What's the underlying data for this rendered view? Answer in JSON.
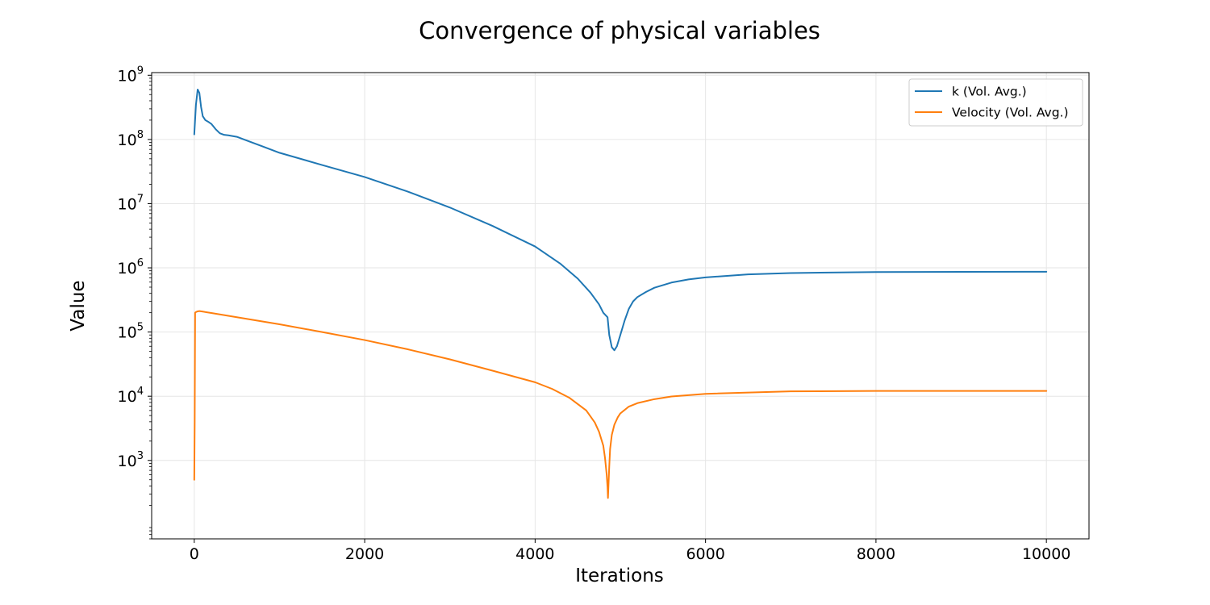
{
  "chart_data": {
    "type": "line",
    "title": "Convergence of physical variables",
    "xlabel": "Iterations",
    "ylabel": "Value",
    "yscale": "log",
    "xlim": [
      -500,
      10500
    ],
    "ylim": [
      60,
      1100000000
    ],
    "xticks": [
      0,
      2000,
      4000,
      6000,
      8000,
      10000
    ],
    "yticks": [
      {
        "value": 1000,
        "base": "10",
        "exp": "3"
      },
      {
        "value": 10000,
        "base": "10",
        "exp": "4"
      },
      {
        "value": 100000,
        "base": "10",
        "exp": "5"
      },
      {
        "value": 1000000,
        "base": "10",
        "exp": "6"
      },
      {
        "value": 10000000,
        "base": "10",
        "exp": "7"
      },
      {
        "value": 100000000,
        "base": "10",
        "exp": "8"
      },
      {
        "value": 1000000000,
        "base": "10",
        "exp": "9"
      }
    ],
    "grid": true,
    "legend_position": "top-right",
    "series": [
      {
        "name": "k (Vol. Avg.)",
        "color": "#1f77b4",
        "x": [
          0,
          20,
          40,
          60,
          80,
          100,
          130,
          160,
          200,
          250,
          300,
          350,
          400,
          500,
          600,
          800,
          1000,
          1500,
          2000,
          2500,
          3000,
          3500,
          4000,
          4300,
          4500,
          4650,
          4750,
          4800,
          4850,
          4870,
          4900,
          4930,
          4960,
          5000,
          5050,
          5100,
          5150,
          5200,
          5300,
          5400,
          5600,
          5800,
          6000,
          6500,
          7000,
          8000,
          9000,
          10000
        ],
        "y": [
          120000000,
          350000000,
          600000000,
          530000000,
          320000000,
          230000000,
          200000000,
          190000000,
          175000000,
          145000000,
          125000000,
          118000000,
          116000000,
          110000000,
          98000000,
          78000000,
          62000000,
          40000000,
          26000000,
          15500000,
          8700000,
          4500000,
          2150000,
          1150000,
          680000,
          410000,
          270000,
          200000,
          170000,
          90000,
          58000,
          52000,
          60000,
          90000,
          150000,
          230000,
          300000,
          350000,
          420000,
          490000,
          590000,
          660000,
          710000,
          790000,
          830000,
          860000,
          865000,
          870000
        ]
      },
      {
        "name": "Velocity (Vol. Avg.)",
        "color": "#ff7f0e",
        "x": [
          0,
          5,
          10,
          20,
          40,
          60,
          100,
          200,
          500,
          1000,
          1500,
          2000,
          2500,
          3000,
          3500,
          4000,
          4200,
          4400,
          4600,
          4700,
          4750,
          4800,
          4820,
          4840,
          4850,
          4855,
          4860,
          4870,
          4880,
          4900,
          4930,
          4970,
          5000,
          5100,
          5200,
          5400,
          5600,
          6000,
          7000,
          8000,
          9000,
          10000
        ],
        "y": [
          500,
          4000,
          200000,
          205000,
          210000,
          212000,
          208000,
          198000,
          170000,
          132000,
          100000,
          75000,
          54000,
          37500,
          25000,
          16500,
          13000,
          9500,
          6000,
          3900,
          2800,
          1700,
          1100,
          600,
          380,
          260,
          380,
          800,
          1500,
          2500,
          3600,
          4700,
          5400,
          6900,
          7800,
          9000,
          9900,
          10900,
          11900,
          12100,
          12100,
          12100
        ]
      }
    ]
  }
}
